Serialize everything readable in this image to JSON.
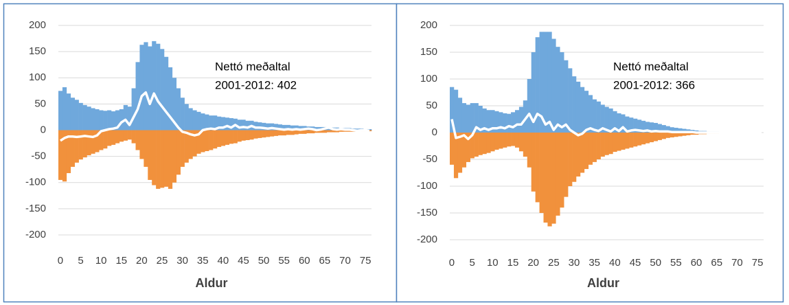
{
  "chart_data": [
    {
      "type": "bar",
      "annotation": [
        "Nettó meðaltal",
        "2001-2012: 402"
      ],
      "x_label": "Aldur",
      "categories": [
        "0",
        null,
        null,
        null,
        null,
        "5",
        null,
        null,
        null,
        null,
        "10",
        null,
        null,
        null,
        null,
        "15",
        null,
        null,
        null,
        null,
        "20",
        null,
        null,
        null,
        null,
        "25",
        null,
        null,
        null,
        null,
        "30",
        null,
        null,
        null,
        null,
        "35",
        null,
        null,
        null,
        null,
        "40",
        null,
        null,
        null,
        null,
        "45",
        null,
        null,
        null,
        null,
        "50",
        null,
        null,
        null,
        null,
        "55",
        null,
        null,
        null,
        null,
        "60",
        null,
        null,
        null,
        null,
        "65",
        null,
        null,
        null,
        null,
        "70",
        null,
        null,
        null,
        null,
        "75",
        null
      ],
      "series": [
        {
          "color": "#6fa8dc",
          "values": [
            75,
            82,
            70,
            62,
            58,
            52,
            48,
            45,
            42,
            40,
            38,
            37,
            38,
            36,
            38,
            40,
            48,
            45,
            80,
            130,
            163,
            168,
            160,
            170,
            165,
            155,
            140,
            120,
            100,
            80,
            62,
            50,
            42,
            38,
            35,
            32,
            30,
            28,
            28,
            26,
            25,
            24,
            23,
            22,
            20,
            20,
            18,
            18,
            16,
            15,
            14,
            13,
            13,
            12,
            11,
            10,
            10,
            9,
            9,
            8,
            8,
            7,
            7,
            6,
            6,
            6,
            5,
            5,
            5,
            4,
            4,
            4,
            3,
            3,
            3,
            2,
            2
          ]
        },
        {
          "color": "#f1913c",
          "values": [
            -95,
            -98,
            -82,
            -70,
            -62,
            -56,
            -52,
            -48,
            -45,
            -42,
            -38,
            -35,
            -30,
            -28,
            -25,
            -22,
            -20,
            -18,
            -25,
            -38,
            -55,
            -70,
            -95,
            -105,
            -112,
            -110,
            -108,
            -112,
            -100,
            -85,
            -70,
            -62,
            -55,
            -50,
            -45,
            -42,
            -40,
            -38,
            -35,
            -32,
            -30,
            -28,
            -26,
            -25,
            -22,
            -20,
            -19,
            -18,
            -16,
            -15,
            -14,
            -13,
            -12,
            -11,
            -10,
            -10,
            -9,
            -9,
            -8,
            -7,
            -7,
            -6,
            -6,
            -5,
            -5,
            -5,
            -4,
            -4,
            -4,
            -3,
            -3,
            -3,
            -3,
            -2,
            -2,
            -2,
            -2
          ]
        },
        {
          "type": "line",
          "color": "#ffffff",
          "values": [
            -20,
            -15,
            -12,
            -12,
            -13,
            -12,
            -11,
            -12,
            -13,
            -10,
            -2,
            0,
            2,
            3,
            5,
            15,
            20,
            10,
            25,
            40,
            65,
            72,
            50,
            70,
            55,
            45,
            35,
            25,
            15,
            5,
            -3,
            -5,
            -8,
            -10,
            -8,
            0,
            2,
            3,
            2,
            5,
            5,
            8,
            5,
            10,
            5,
            6,
            5,
            8,
            5,
            5,
            4,
            3,
            4,
            3,
            2,
            1,
            2,
            1,
            2,
            1,
            2,
            3,
            2,
            0,
            1,
            3,
            5,
            2,
            1,
            2,
            1,
            1,
            0,
            -1,
            0,
            0,
            -1
          ]
        }
      ],
      "ylim": [
        -200,
        200
      ],
      "yticks": [
        -200,
        -150,
        -100,
        -50,
        0,
        50,
        100,
        150,
        200
      ],
      "grid": true
    },
    {
      "type": "bar",
      "annotation": [
        "Nettó meðaltal",
        "2001-2012: 366"
      ],
      "x_label": "Aldur",
      "categories": [
        "0",
        null,
        null,
        null,
        null,
        "5",
        null,
        null,
        null,
        null,
        "10",
        null,
        null,
        null,
        null,
        "15",
        null,
        null,
        null,
        null,
        "20",
        null,
        null,
        null,
        null,
        "25",
        null,
        null,
        null,
        null,
        "30",
        null,
        null,
        null,
        null,
        "35",
        null,
        null,
        null,
        null,
        "40",
        null,
        null,
        null,
        null,
        "45",
        null,
        null,
        null,
        null,
        "50",
        null,
        null,
        null,
        null,
        "55",
        null,
        null,
        null,
        null,
        "60",
        null,
        null,
        null,
        null,
        "65",
        null,
        null,
        null,
        null,
        "70",
        null,
        null,
        null,
        null,
        "75",
        null
      ],
      "series": [
        {
          "color": "#6fa8dc",
          "values": [
            85,
            80,
            65,
            55,
            52,
            55,
            55,
            50,
            45,
            42,
            42,
            40,
            38,
            36,
            35,
            38,
            42,
            48,
            60,
            100,
            150,
            178,
            188,
            188,
            188,
            175,
            160,
            150,
            135,
            120,
            105,
            95,
            85,
            78,
            70,
            62,
            58,
            52,
            48,
            45,
            40,
            36,
            34,
            30,
            28,
            26,
            24,
            22,
            20,
            19,
            18,
            16,
            14,
            12,
            10,
            9,
            8,
            7,
            6,
            5,
            4,
            3,
            3,
            2,
            2,
            2,
            1,
            1,
            1,
            1,
            1,
            1,
            1,
            1,
            1,
            0,
            0
          ]
        },
        {
          "color": "#f1913c",
          "values": [
            -60,
            -85,
            -75,
            -65,
            -55,
            -48,
            -45,
            -42,
            -40,
            -38,
            -35,
            -32,
            -30,
            -28,
            -26,
            -25,
            -28,
            -35,
            -45,
            -65,
            -110,
            -130,
            -150,
            -168,
            -175,
            -170,
            -155,
            -140,
            -120,
            -100,
            -92,
            -82,
            -75,
            -68,
            -60,
            -55,
            -50,
            -45,
            -42,
            -40,
            -36,
            -34,
            -32,
            -30,
            -28,
            -26,
            -24,
            -22,
            -20,
            -18,
            -16,
            -14,
            -12,
            -10,
            -9,
            -8,
            -7,
            -6,
            -5,
            -4,
            -4,
            -3,
            -3,
            -2,
            -2,
            -2,
            -1,
            -1,
            -1,
            -1,
            -1,
            -1,
            -1,
            -1,
            -1,
            0,
            0
          ]
        },
        {
          "type": "line",
          "color": "#ffffff",
          "values": [
            25,
            -10,
            -8,
            -5,
            -12,
            -5,
            10,
            5,
            8,
            5,
            8,
            8,
            10,
            8,
            12,
            10,
            15,
            15,
            25,
            35,
            20,
            35,
            30,
            15,
            20,
            5,
            15,
            10,
            15,
            5,
            0,
            -5,
            -2,
            5,
            8,
            5,
            3,
            8,
            5,
            2,
            8,
            3,
            10,
            2,
            4,
            5,
            4,
            3,
            4,
            2,
            3,
            2,
            2,
            2,
            1,
            1,
            1,
            1,
            1,
            1,
            0,
            0,
            0,
            0,
            0,
            0,
            0,
            0,
            0,
            0,
            0,
            0,
            0,
            0,
            0,
            0,
            0
          ]
        }
      ],
      "ylim": [
        -200,
        200
      ],
      "yticks": [
        -200,
        -150,
        -100,
        -50,
        0,
        50,
        100,
        150,
        200
      ],
      "grid": true
    }
  ]
}
